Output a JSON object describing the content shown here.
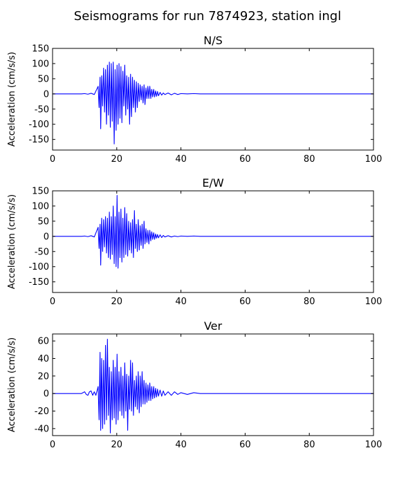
{
  "suptitle": "Seismograms for run 7874923, station ingl",
  "colors": {
    "trace": "#0000ff",
    "axes": "#000000",
    "background": "#ffffff"
  },
  "chart_data": [
    {
      "type": "line",
      "title": "N/S",
      "xlabel": "",
      "ylabel": "Acceleration (cm/s/s)",
      "xlim": [
        0,
        100
      ],
      "ylim": [
        -185,
        150
      ],
      "xticks": [
        0,
        20,
        40,
        60,
        80,
        100
      ],
      "yticks": [
        150,
        100,
        50,
        0,
        -50,
        -100,
        -150
      ],
      "grid": false,
      "series": [
        {
          "x": [
            0,
            9,
            10,
            11,
            12,
            13,
            14.2,
            14.5,
            14.8,
            15.0,
            15.3,
            15.6,
            15.9,
            16.2,
            16.5,
            16.8,
            17.1,
            17.4,
            17.7,
            18.0,
            18.3,
            18.6,
            18.9,
            19.2,
            19.5,
            19.8,
            20.1,
            20.4,
            20.7,
            21.0,
            21.3,
            21.6,
            21.9,
            22.2,
            22.5,
            22.8,
            23.1,
            23.4,
            23.7,
            24.0,
            24.3,
            24.6,
            24.9,
            25.2,
            25.5,
            25.8,
            26.1,
            26.4,
            26.7,
            27.0,
            27.3,
            27.6,
            27.9,
            28.2,
            28.5,
            28.8,
            29.1,
            29.4,
            29.7,
            30.0,
            30.3,
            30.6,
            30.9,
            31.2,
            31.5,
            31.8,
            32.1,
            32.4,
            32.7,
            33.0,
            33.5,
            34.0,
            34.5,
            35.0,
            36.0,
            37.0,
            38.0,
            39.0,
            40.0,
            42.0,
            44.0,
            46.0,
            48.0,
            50.0,
            100
          ],
          "y": [
            0,
            0,
            1,
            -1,
            2,
            -2,
            25,
            -45,
            55,
            -115,
            60,
            -40,
            85,
            -60,
            80,
            -100,
            95,
            -70,
            105,
            -110,
            100,
            -90,
            105,
            -165,
            80,
            -120,
            95,
            -100,
            100,
            -80,
            90,
            -95,
            75,
            -40,
            95,
            -70,
            60,
            -50,
            55,
            -100,
            65,
            -75,
            55,
            -45,
            45,
            -60,
            40,
            -45,
            35,
            -25,
            30,
            -20,
            25,
            -30,
            30,
            -35,
            20,
            -15,
            25,
            -15,
            25,
            -15,
            15,
            -10,
            15,
            -10,
            10,
            -8,
            8,
            -6,
            5,
            -4,
            3,
            -2,
            3,
            -3,
            2,
            -2,
            1,
            0,
            1,
            0,
            0,
            0,
            0
          ]
        }
      ]
    },
    {
      "type": "line",
      "title": "E/W",
      "xlabel": "",
      "ylabel": "Acceleration (cm/s/s)",
      "xlim": [
        0,
        100
      ],
      "ylim": [
        -185,
        150
      ],
      "xticks": [
        0,
        20,
        40,
        60,
        80,
        100
      ],
      "yticks": [
        150,
        100,
        50,
        0,
        -50,
        -100,
        -150
      ],
      "grid": false,
      "series": [
        {
          "x": [
            0,
            9,
            10,
            11,
            12,
            13,
            14.2,
            14.5,
            14.8,
            15.0,
            15.3,
            15.6,
            15.9,
            16.2,
            16.5,
            16.8,
            17.1,
            17.4,
            17.7,
            18.0,
            18.3,
            18.6,
            18.9,
            19.2,
            19.5,
            19.8,
            20.1,
            20.4,
            20.7,
            21.0,
            21.3,
            21.6,
            21.9,
            22.2,
            22.5,
            22.8,
            23.1,
            23.4,
            23.7,
            24.0,
            24.3,
            24.6,
            24.9,
            25.2,
            25.5,
            25.8,
            26.1,
            26.4,
            26.7,
            27.0,
            27.3,
            27.6,
            27.9,
            28.2,
            28.5,
            28.8,
            29.1,
            29.4,
            29.7,
            30.0,
            30.3,
            30.6,
            30.9,
            31.2,
            31.5,
            31.8,
            32.1,
            32.4,
            32.7,
            33.0,
            33.5,
            34.0,
            34.5,
            35.0,
            36.0,
            37.0,
            38.0,
            39.0,
            40.0,
            42.0,
            44.0,
            46.0,
            48.0,
            50.0,
            100
          ],
          "y": [
            0,
            0,
            1,
            -1,
            2,
            -2,
            30,
            -40,
            40,
            -95,
            60,
            -50,
            55,
            -35,
            65,
            -55,
            60,
            -70,
            80,
            -75,
            65,
            -60,
            100,
            -90,
            65,
            -100,
            135,
            -105,
            80,
            -70,
            90,
            -85,
            60,
            -70,
            95,
            -60,
            75,
            -65,
            50,
            -45,
            45,
            -55,
            55,
            -70,
            85,
            -40,
            40,
            -50,
            55,
            -45,
            35,
            -30,
            40,
            -40,
            50,
            -25,
            25,
            -20,
            20,
            -25,
            20,
            -15,
            15,
            -10,
            12,
            -10,
            8,
            -6,
            6,
            -5,
            5,
            -4,
            3,
            -2,
            2,
            -2,
            1,
            -1,
            1,
            0,
            1,
            0,
            0,
            0,
            0
          ]
        }
      ]
    },
    {
      "type": "line",
      "title": "Ver",
      "xlabel": "",
      "ylabel": "Acceleration (cm/s/s)",
      "xlim": [
        0,
        100
      ],
      "ylim": [
        -48,
        68
      ],
      "xticks": [
        0,
        20,
        40,
        60,
        80,
        100
      ],
      "yticks": [
        60,
        40,
        20,
        0,
        -20,
        -40
      ],
      "grid": false,
      "series": [
        {
          "x": [
            0,
            9,
            9.5,
            10,
            10.5,
            11,
            11.5,
            12,
            12.5,
            13,
            13.5,
            14.2,
            14.5,
            14.8,
            15.0,
            15.3,
            15.6,
            15.9,
            16.2,
            16.5,
            16.8,
            17.1,
            17.4,
            17.7,
            18.0,
            18.3,
            18.6,
            18.9,
            19.2,
            19.5,
            19.8,
            20.1,
            20.4,
            20.7,
            21.0,
            21.3,
            21.6,
            21.9,
            22.2,
            22.5,
            22.8,
            23.1,
            23.4,
            23.7,
            24.0,
            24.3,
            24.6,
            24.9,
            25.2,
            25.5,
            25.8,
            26.1,
            26.4,
            26.7,
            27.0,
            27.3,
            27.6,
            27.9,
            28.2,
            28.5,
            28.8,
            29.1,
            29.4,
            29.7,
            30.0,
            30.3,
            30.6,
            30.9,
            31.2,
            31.5,
            31.8,
            32.1,
            32.4,
            32.7,
            33.0,
            33.5,
            34.0,
            34.5,
            35.0,
            36.0,
            37.0,
            38.0,
            39.0,
            40.0,
            42.0,
            44.0,
            46.0,
            48.0,
            50.0,
            100
          ],
          "y": [
            0,
            0,
            1,
            2,
            -1,
            -2,
            2,
            3,
            -2,
            2,
            -2,
            8,
            -30,
            47,
            -42,
            40,
            -40,
            38,
            -35,
            55,
            -30,
            62,
            -25,
            30,
            -45,
            25,
            -30,
            38,
            -28,
            30,
            -35,
            45,
            -30,
            25,
            -20,
            30,
            -25,
            20,
            -28,
            35,
            -20,
            22,
            -42,
            20,
            -18,
            38,
            -20,
            35,
            -25,
            15,
            -15,
            20,
            -18,
            25,
            -22,
            20,
            -15,
            25,
            -12,
            15,
            -12,
            12,
            -10,
            10,
            -8,
            12,
            -8,
            8,
            -6,
            8,
            -5,
            6,
            -4,
            5,
            -3,
            4,
            -3,
            3,
            -2,
            2,
            -2,
            2,
            -1,
            1,
            -1,
            1,
            0,
            0,
            0,
            0
          ]
        }
      ]
    }
  ]
}
